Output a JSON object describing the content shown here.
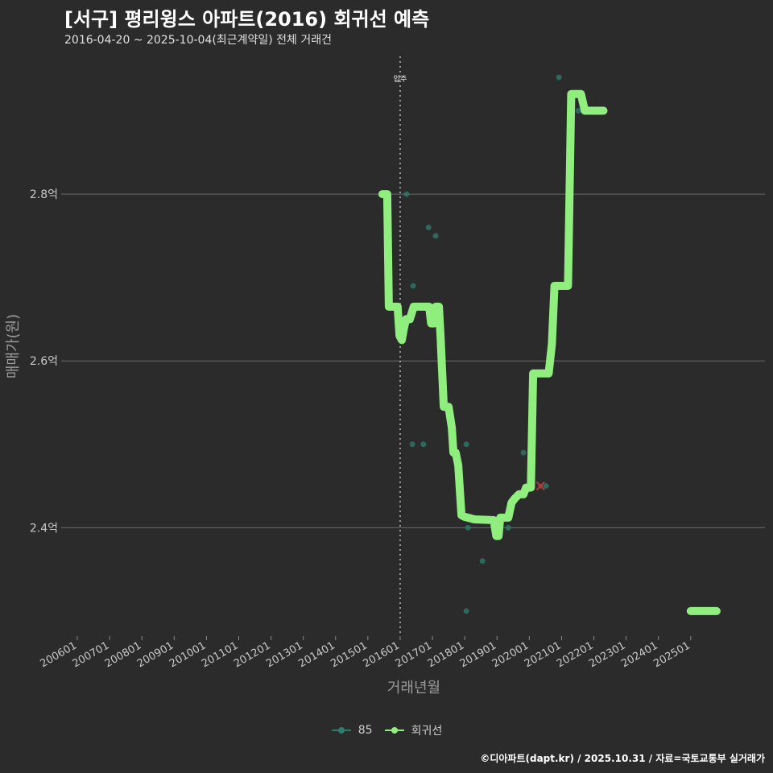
{
  "header": {
    "title": "[서구] 평리윙스 아파트(2016) 회귀선 예측",
    "subtitle": "2016-04-20 ~ 2025-10-04(최근계약일) 전체 거래건"
  },
  "footer": {
    "credit": "©디아파트(dapt.kr) / 2025.10.31 / 자료=국토교통부 실거래가"
  },
  "colors": {
    "background": "#2b2b2c",
    "grid": "#6a6a6a",
    "regression": "#90ee7e",
    "scatter": "#2e7d6b",
    "highlight": "#b03a3a",
    "marker": "#bbbbbb"
  },
  "chart_data": {
    "type": "line",
    "title": "[서구] 평리윙스 아파트(2016) 회귀선 예측",
    "xlabel": "거래년월",
    "ylabel": "매매가(원)",
    "x_ticks": [
      "200601",
      "200701",
      "200801",
      "200901",
      "201001",
      "201101",
      "201201",
      "201301",
      "201401",
      "201501",
      "201601",
      "201701",
      "201801",
      "201901",
      "202001",
      "202101",
      "202201",
      "202301",
      "202401",
      "202501"
    ],
    "y_ticks": [
      {
        "value": 2.4,
        "label": "2.4억"
      },
      {
        "value": 2.6,
        "label": "2.6억"
      },
      {
        "value": 2.8,
        "label": "2.8억"
      }
    ],
    "xlim": [
      2005.6,
      2027.3
    ],
    "ylim": [
      2.27,
      2.97
    ],
    "vline": {
      "x": 2016.0,
      "label": "입주"
    },
    "series": [
      {
        "name": "회귀선",
        "type": "line",
        "color": "#90ee7e",
        "points": [
          [
            2015.45,
            2.8
          ],
          [
            2015.6,
            2.8
          ],
          [
            2015.65,
            2.665
          ],
          [
            2015.92,
            2.665
          ],
          [
            2015.98,
            2.63
          ],
          [
            2016.05,
            2.625
          ],
          [
            2016.12,
            2.64
          ],
          [
            2016.18,
            2.65
          ],
          [
            2016.3,
            2.65
          ],
          [
            2016.42,
            2.665
          ],
          [
            2016.6,
            2.665
          ],
          [
            2016.9,
            2.665
          ],
          [
            2016.96,
            2.645
          ],
          [
            2017.05,
            2.645
          ],
          [
            2017.1,
            2.665
          ],
          [
            2017.2,
            2.665
          ],
          [
            2017.25,
            2.63
          ],
          [
            2017.35,
            2.545
          ],
          [
            2017.5,
            2.545
          ],
          [
            2017.6,
            2.52
          ],
          [
            2017.65,
            2.49
          ],
          [
            2017.72,
            2.49
          ],
          [
            2017.8,
            2.475
          ],
          [
            2017.9,
            2.415
          ],
          [
            2018.0,
            2.413
          ],
          [
            2018.3,
            2.41
          ],
          [
            2018.9,
            2.409
          ],
          [
            2018.98,
            2.39
          ],
          [
            2019.05,
            2.39
          ],
          [
            2019.1,
            2.412
          ],
          [
            2019.35,
            2.412
          ],
          [
            2019.45,
            2.43
          ],
          [
            2019.55,
            2.435
          ],
          [
            2019.68,
            2.44
          ],
          [
            2019.82,
            2.44
          ],
          [
            2019.9,
            2.448
          ],
          [
            2020.05,
            2.448
          ],
          [
            2020.12,
            2.585
          ],
          [
            2020.35,
            2.585
          ],
          [
            2020.6,
            2.585
          ],
          [
            2020.7,
            2.62
          ],
          [
            2020.78,
            2.69
          ],
          [
            2020.9,
            2.69
          ],
          [
            2021.2,
            2.69
          ],
          [
            2021.3,
            2.92
          ],
          [
            2021.6,
            2.92
          ],
          [
            2021.72,
            2.9
          ],
          [
            2022.3,
            2.9
          ]
        ]
      },
      {
        "name": "회귀선-2025",
        "type": "line",
        "color": "#90ee7e",
        "points": [
          [
            2025.0,
            2.3
          ],
          [
            2025.8,
            2.3
          ]
        ]
      },
      {
        "name": "85",
        "type": "scatter",
        "color": "#2e7d6b",
        "points": [
          [
            2016.2,
            2.8
          ],
          [
            2016.4,
            2.69
          ],
          [
            2016.38,
            2.5
          ],
          [
            2016.72,
            2.5
          ],
          [
            2016.88,
            2.76
          ],
          [
            2017.1,
            2.75
          ],
          [
            2016.95,
            2.65
          ],
          [
            2016.05,
            2.63
          ],
          [
            2018.05,
            2.5
          ],
          [
            2018.1,
            2.4
          ],
          [
            2018.05,
            2.3
          ],
          [
            2018.55,
            2.36
          ],
          [
            2019.35,
            2.4
          ],
          [
            2019.82,
            2.49
          ],
          [
            2020.52,
            2.45
          ],
          [
            2020.92,
            2.94
          ],
          [
            2021.52,
            2.9
          ]
        ]
      },
      {
        "name": "highlight",
        "type": "cross",
        "color": "#b03a3a",
        "points": [
          [
            2020.35,
            2.45
          ]
        ]
      }
    ],
    "legend": {
      "position": "bottom",
      "items": [
        {
          "name": "85",
          "color": "#2e7d6b"
        },
        {
          "name": "회귀선",
          "color": "#90ee7e"
        }
      ]
    }
  }
}
